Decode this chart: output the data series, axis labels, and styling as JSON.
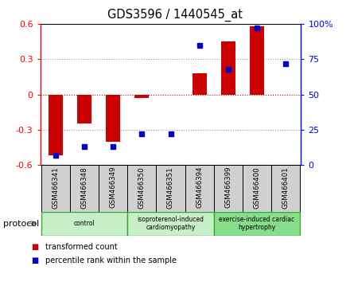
{
  "title": "GDS3596 / 1440545_at",
  "samples": [
    "GSM466341",
    "GSM466348",
    "GSM466349",
    "GSM466350",
    "GSM466351",
    "GSM466394",
    "GSM466399",
    "GSM466400",
    "GSM466401"
  ],
  "bar_values": [
    -0.52,
    -0.25,
    -0.4,
    -0.03,
    0.0,
    0.18,
    0.45,
    0.58,
    0.0
  ],
  "dot_values": [
    7,
    13,
    13,
    22,
    22,
    85,
    68,
    97,
    72
  ],
  "group_configs": [
    {
      "start": 0,
      "end": 3,
      "color": "#c8f0c8",
      "label": "control",
      "border": "#33aa33"
    },
    {
      "start": 3,
      "end": 6,
      "color": "#c8f0c8",
      "label": "isoproterenol-induced\ncardiomyopathy",
      "border": "#33aa33"
    },
    {
      "start": 6,
      "end": 9,
      "color": "#88dd88",
      "label": "exercise-induced cardiac\nhypertrophy",
      "border": "#33aa33"
    }
  ],
  "ylim_left": [
    -0.6,
    0.6
  ],
  "ylim_right": [
    0,
    100
  ],
  "yticks_left": [
    -0.6,
    -0.3,
    0.0,
    0.3,
    0.6
  ],
  "ytick_labels_left": [
    "-0.6",
    "-0.3",
    "0",
    "0.3",
    "0.6"
  ],
  "yticks_right": [
    0,
    25,
    50,
    75,
    100
  ],
  "ytick_labels_right": [
    "0",
    "25",
    "50",
    "75",
    "100%"
  ],
  "bar_color": "#cc0000",
  "dot_color": "#0000cc",
  "grid_yticks": [
    -0.3,
    0.0,
    0.3
  ],
  "protocol_label": "protocol",
  "legend_bar_label": "transformed count",
  "legend_dot_label": "percentile rank within the sample",
  "sample_box_color": "#d0d0d0",
  "bar_width": 0.5
}
